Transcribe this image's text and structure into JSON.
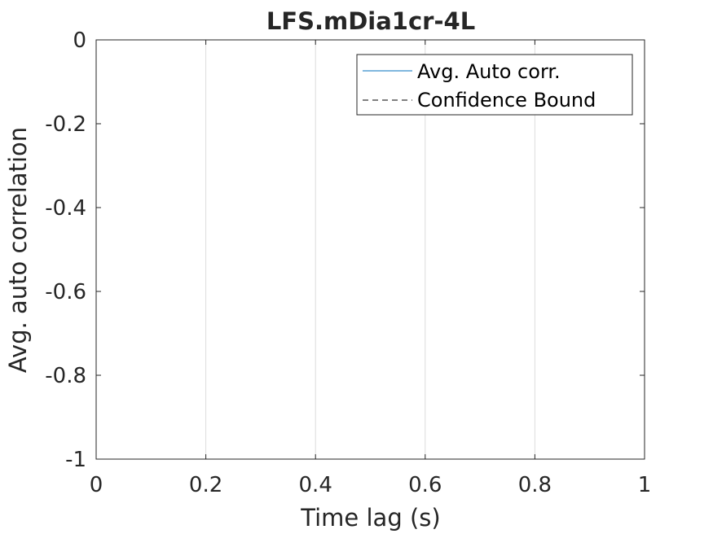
{
  "chart_data": {
    "type": "line",
    "title": "LFS.mDia1cr-4L",
    "xlabel": "Time lag (s)",
    "ylabel": "Avg. auto correlation",
    "xlim": [
      0,
      1
    ],
    "ylim": [
      -1,
      0
    ],
    "x_ticks": [
      0,
      0.2,
      0.4,
      0.6,
      0.8,
      1
    ],
    "x_tick_labels": [
      "0",
      "0.2",
      "0.4",
      "0.6",
      "0.8",
      "1"
    ],
    "y_ticks": [
      0,
      -0.2,
      -0.4,
      -0.6,
      -0.8,
      -1
    ],
    "y_tick_labels": [
      "0",
      "-0.2",
      "-0.4",
      "-0.6",
      "-0.8",
      "-1"
    ],
    "grid": "x-only",
    "legend_position": "top-right",
    "series": [
      {
        "name": "Avg. Auto corr.",
        "color": "#0072BD",
        "style": "solid",
        "x": [],
        "y": []
      },
      {
        "name": "Confidence Bound",
        "color": "#000000",
        "style": "dashed",
        "x": [],
        "y": []
      }
    ]
  }
}
